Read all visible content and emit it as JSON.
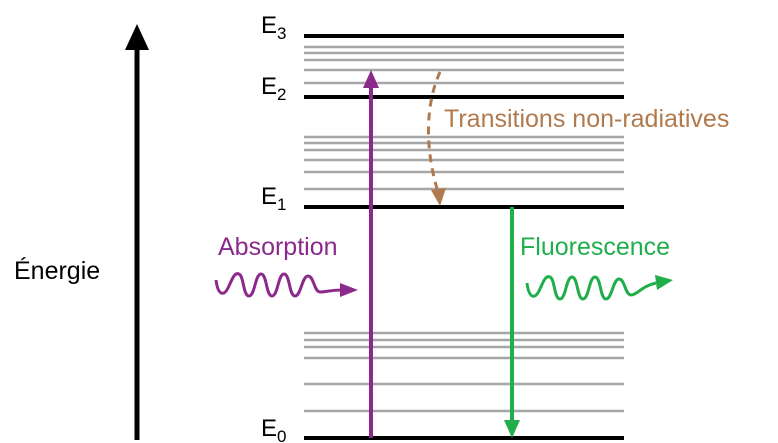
{
  "axis": {
    "label": "Énergie",
    "color": "#000000"
  },
  "levels": [
    {
      "name": "E",
      "sub": "3"
    },
    {
      "name": "E",
      "sub": "2"
    },
    {
      "name": "E",
      "sub": "1"
    },
    {
      "name": "E",
      "sub": "0"
    }
  ],
  "processes": {
    "absorption": {
      "label": "Absorption",
      "color": "#8B2A8B"
    },
    "fluorescence": {
      "label": "Fluorescence",
      "color": "#1FAE4A"
    },
    "nonradiative": {
      "label": "Transitions non-radiatives",
      "color": "#B07A4E"
    }
  },
  "colors": {
    "main_level": "#000000",
    "sub_level": "#A6A6A6"
  }
}
